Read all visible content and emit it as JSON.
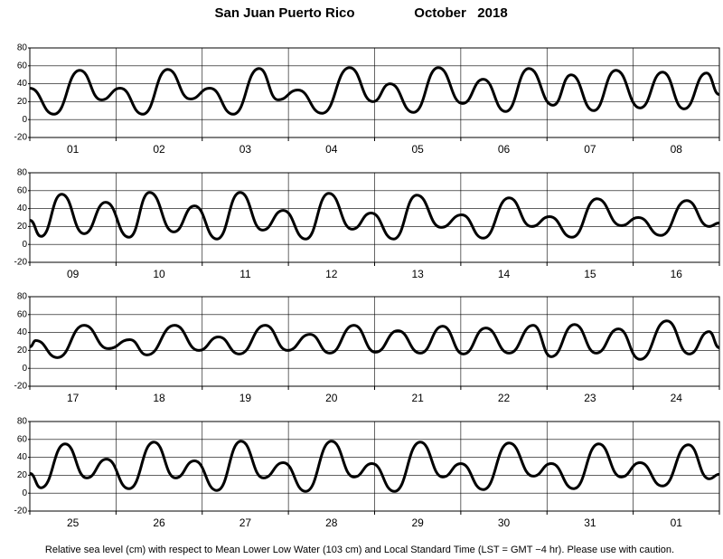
{
  "header": {
    "station": "San Juan Puerto Rico",
    "month": "October   2018"
  },
  "footer": "Relative sea level (cm) with respect to Mean Lower Low Water (103 cm) and Local Standard Time (LST = GMT −4 hr). Please use with caution.",
  "chart_data": [
    {
      "type": "line",
      "color": "#000000",
      "grid": true,
      "categories": [
        "01",
        "02",
        "03",
        "04",
        "05",
        "06",
        "07",
        "08"
      ],
      "xlim": [
        0,
        8
      ],
      "xticks": [
        0,
        1,
        2,
        3,
        4,
        5,
        6,
        7,
        8
      ],
      "ylim": [
        -20,
        80
      ],
      "yticks": [
        -20,
        0,
        20,
        40,
        60,
        80
      ],
      "x": [
        0,
        0.28,
        0.58,
        0.83,
        1.05,
        1.31,
        1.6,
        1.86,
        2.09,
        2.36,
        2.66,
        2.88,
        3.11,
        3.39,
        3.71,
        3.98,
        4.18,
        4.45,
        4.74,
        5.02,
        5.26,
        5.52,
        5.79,
        6.07,
        6.28,
        6.54,
        6.8,
        7.08,
        7.34,
        7.59,
        7.85,
        8
      ],
      "values": [
        35,
        6,
        55,
        22,
        35,
        6,
        56,
        23,
        35,
        6,
        57,
        22,
        33,
        7,
        58,
        20,
        40,
        8,
        58,
        18,
        45,
        9,
        57,
        16,
        50,
        10,
        55,
        13,
        53,
        12,
        52,
        28
      ]
    },
    {
      "type": "line",
      "color": "#000000",
      "grid": true,
      "categories": [
        "09",
        "10",
        "11",
        "12",
        "13",
        "14",
        "15",
        "16"
      ],
      "xlim": [
        0,
        8
      ],
      "xticks": [
        0,
        1,
        2,
        3,
        4,
        5,
        6,
        7,
        8
      ],
      "ylim": [
        -20,
        80
      ],
      "yticks": [
        -20,
        0,
        20,
        40,
        60,
        80
      ],
      "x": [
        0,
        0.13,
        0.37,
        0.63,
        0.88,
        1.15,
        1.39,
        1.67,
        1.91,
        2.17,
        2.44,
        2.7,
        2.94,
        3.2,
        3.47,
        3.74,
        3.96,
        4.22,
        4.49,
        4.77,
        5.01,
        5.26,
        5.56,
        5.82,
        6.03,
        6.29,
        6.58,
        6.86,
        7.06,
        7.32,
        7.62,
        7.88,
        8
      ],
      "values": [
        27,
        9,
        56,
        12,
        47,
        8,
        58,
        14,
        43,
        6,
        58,
        16,
        38,
        6,
        57,
        17,
        35,
        6,
        55,
        19,
        33,
        7,
        52,
        20,
        31,
        8,
        51,
        21,
        30,
        10,
        49,
        20,
        24
      ]
    },
    {
      "type": "line",
      "color": "#000000",
      "grid": true,
      "categories": [
        "17",
        "18",
        "19",
        "20",
        "21",
        "22",
        "23",
        "24"
      ],
      "xlim": [
        0,
        8
      ],
      "xticks": [
        0,
        1,
        2,
        3,
        4,
        5,
        6,
        7,
        8
      ],
      "ylim": [
        -20,
        80
      ],
      "yticks": [
        -20,
        0,
        20,
        40,
        60,
        80
      ],
      "x": [
        0,
        0.07,
        0.32,
        0.63,
        0.91,
        1.16,
        1.36,
        1.68,
        1.96,
        2.19,
        2.43,
        2.73,
        2.99,
        3.25,
        3.48,
        3.76,
        4.01,
        4.27,
        4.53,
        4.79,
        5.03,
        5.29,
        5.56,
        5.84,
        6.05,
        6.32,
        6.57,
        6.83,
        7.08,
        7.39,
        7.65,
        7.88,
        8
      ],
      "values": [
        24,
        31,
        12,
        48,
        22,
        32,
        15,
        48,
        20,
        35,
        16,
        48,
        20,
        38,
        17,
        48,
        18,
        42,
        17,
        47,
        16,
        45,
        17,
        48,
        13,
        49,
        17,
        44,
        10,
        53,
        16,
        41,
        23
      ]
    },
    {
      "type": "line",
      "color": "#000000",
      "grid": true,
      "categories": [
        "25",
        "26",
        "27",
        "28",
        "29",
        "30",
        "31",
        "01"
      ],
      "xlim": [
        0,
        8
      ],
      "xticks": [
        0,
        1,
        2,
        3,
        4,
        5,
        6,
        7,
        8
      ],
      "ylim": [
        -20,
        80
      ],
      "yticks": [
        -20,
        0,
        20,
        40,
        60,
        80
      ],
      "x": [
        0,
        0.13,
        0.41,
        0.66,
        0.89,
        1.15,
        1.44,
        1.69,
        1.91,
        2.17,
        2.45,
        2.71,
        2.94,
        3.2,
        3.5,
        3.76,
        3.97,
        4.23,
        4.53,
        4.79,
        5,
        5.26,
        5.56,
        5.84,
        6.05,
        6.31,
        6.6,
        6.86,
        7.08,
        7.34,
        7.64,
        7.88,
        8
      ],
      "values": [
        22,
        6,
        55,
        17,
        38,
        5,
        57,
        17,
        36,
        3,
        58,
        17,
        34,
        2,
        58,
        18,
        33,
        2,
        57,
        18,
        33,
        4,
        56,
        19,
        33,
        5,
        55,
        18,
        34,
        8,
        54,
        16,
        21
      ]
    }
  ]
}
